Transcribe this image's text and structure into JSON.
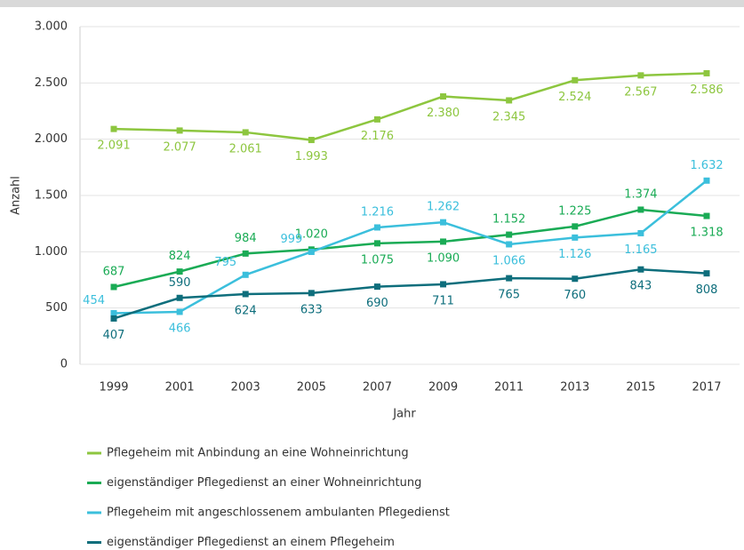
{
  "chart_data": {
    "type": "line",
    "ylabel": "Anzahl",
    "xlabel": "Jahr",
    "categories": [
      "1999",
      "2001",
      "2003",
      "2005",
      "2007",
      "2009",
      "2011",
      "2013",
      "2015",
      "2017"
    ],
    "ylim": [
      0,
      3000
    ],
    "yticks": [
      {
        "value": 0,
        "label": "0"
      },
      {
        "value": 500,
        "label": "500"
      },
      {
        "value": 1000,
        "label": "1.000"
      },
      {
        "value": 1500,
        "label": "1.500"
      },
      {
        "value": 2000,
        "label": "2.000"
      },
      {
        "value": 2500,
        "label": "2.500"
      },
      {
        "value": 3000,
        "label": "3.000"
      }
    ],
    "grid": true,
    "series": [
      {
        "name": "Pflegeheim mit Anbindung an eine Wohneinrichtung",
        "color": "#8dc63f",
        "values": [
          2091,
          2077,
          2061,
          1993,
          2176,
          2380,
          2345,
          2524,
          2567,
          2586
        ],
        "value_labels": [
          "2.091",
          "2.077",
          "2.061",
          "1.993",
          "2.176",
          "2.380",
          "2.345",
          "2.524",
          "2.567",
          "2.586"
        ]
      },
      {
        "name": "eigenständiger Pflegedienst an einer Wohneinrichtung",
        "color": "#1aab55",
        "values": [
          687,
          824,
          984,
          1020,
          1075,
          1090,
          1152,
          1225,
          1374,
          1318
        ],
        "value_labels": [
          "687",
          "824",
          "984",
          "1.020",
          "1.075",
          "1.090",
          "1.152",
          "1.225",
          "1.374",
          "1.318"
        ]
      },
      {
        "name": "Pflegeheim mit angeschlossenem ambulanten Pflegedienst",
        "color": "#3bbfdc",
        "values": [
          454,
          466,
          795,
          999,
          1216,
          1262,
          1066,
          1126,
          1165,
          1632
        ],
        "value_labels": [
          "454",
          "466",
          "795",
          "999",
          "1.216",
          "1.262",
          "1.066",
          "1.126",
          "1.165",
          "1.632"
        ]
      },
      {
        "name": "eigenständiger Pflegedienst an einem Pflegeheim",
        "color": "#0e6e7c",
        "values": [
          407,
          590,
          624,
          633,
          690,
          711,
          765,
          760,
          843,
          808
        ],
        "value_labels": [
          "407",
          "590",
          "624",
          "633",
          "690",
          "711",
          "765",
          "760",
          "843",
          "808"
        ]
      }
    ]
  }
}
